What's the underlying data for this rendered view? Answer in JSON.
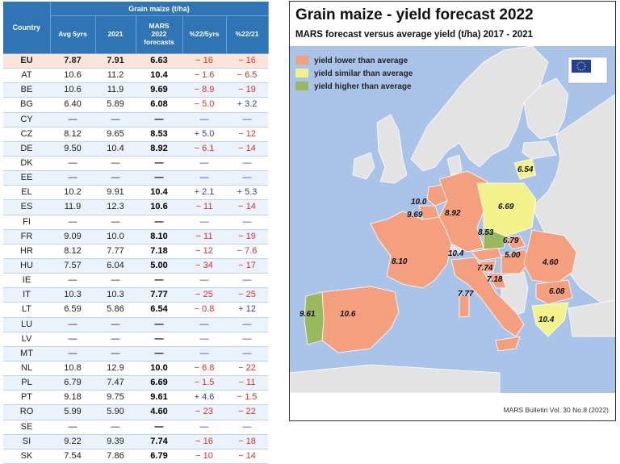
{
  "table": {
    "country_header": "Country",
    "group_header": "Grain maize (t/ha)",
    "columns": [
      "Avg 5yrs",
      "2021",
      "MARS\n2022\nforecasts",
      "%22/5yrs",
      "%22/21"
    ],
    "rows": [
      {
        "country": "EU",
        "avg": "7.87",
        "y2021": "7.91",
        "forecast": "6.63",
        "pct5": "− 16",
        "pct21": "− 16"
      },
      {
        "country": "AT",
        "avg": "10.6",
        "y2021": "11.2",
        "forecast": "10.4",
        "pct5": "− 1.6",
        "pct21": "− 6.5"
      },
      {
        "country": "BE",
        "avg": "10.6",
        "y2021": "11.9",
        "forecast": "9.69",
        "pct5": "− 8.9",
        "pct21": "− 19"
      },
      {
        "country": "BG",
        "avg": "6.40",
        "y2021": "5.89",
        "forecast": "6.08",
        "pct5": "− 5.0",
        "pct21": "+ 3.2"
      },
      {
        "country": "CY",
        "avg": "—",
        "y2021": "—",
        "forecast": "—",
        "pct5": "—",
        "pct21": "—"
      },
      {
        "country": "CZ",
        "avg": "8.12",
        "y2021": "9.65",
        "forecast": "8.53",
        "pct5": "+ 5.0",
        "pct21": "− 12"
      },
      {
        "country": "DE",
        "avg": "9.50",
        "y2021": "10.4",
        "forecast": "8.92",
        "pct5": "− 6.1",
        "pct21": "− 14"
      },
      {
        "country": "DK",
        "avg": "—",
        "y2021": "—",
        "forecast": "—",
        "pct5": "—",
        "pct21": "—"
      },
      {
        "country": "EE",
        "avg": "—",
        "y2021": "—",
        "forecast": "—",
        "pct5": "—",
        "pct21": "—"
      },
      {
        "country": "EL",
        "avg": "10.2",
        "y2021": "9.91",
        "forecast": "10.4",
        "pct5": "+ 2.1",
        "pct21": "+ 5.3"
      },
      {
        "country": "ES",
        "avg": "11.9",
        "y2021": "12.3",
        "forecast": "10.6",
        "pct5": "− 11",
        "pct21": "− 14"
      },
      {
        "country": "FI",
        "avg": "—",
        "y2021": "—",
        "forecast": "—",
        "pct5": "—",
        "pct21": "—"
      },
      {
        "country": "FR",
        "avg": "9.09",
        "y2021": "10.0",
        "forecast": "8.10",
        "pct5": "− 11",
        "pct21": "− 19"
      },
      {
        "country": "HR",
        "avg": "8.12",
        "y2021": "7.77",
        "forecast": "7.18",
        "pct5": "− 12",
        "pct21": "− 7.6"
      },
      {
        "country": "HU",
        "avg": "7.57",
        "y2021": "6.04",
        "forecast": "5.00",
        "pct5": "− 34",
        "pct21": "− 17"
      },
      {
        "country": "IE",
        "avg": "—",
        "y2021": "—",
        "forecast": "—",
        "pct5": "—",
        "pct21": "—"
      },
      {
        "country": "IT",
        "avg": "10.3",
        "y2021": "10.3",
        "forecast": "7.77",
        "pct5": "− 25",
        "pct21": "− 25"
      },
      {
        "country": "LT",
        "avg": "6.59",
        "y2021": "5.86",
        "forecast": "6.54",
        "pct5": "− 0.8",
        "pct21": "+ 12"
      },
      {
        "country": "LU",
        "avg": "—",
        "y2021": "—",
        "forecast": "—",
        "pct5": "—",
        "pct21": "—"
      },
      {
        "country": "LV",
        "avg": "—",
        "y2021": "—",
        "forecast": "—",
        "pct5": "—",
        "pct21": "—"
      },
      {
        "country": "MT",
        "avg": "—",
        "y2021": "—",
        "forecast": "—",
        "pct5": "—",
        "pct21": "—"
      },
      {
        "country": "NL",
        "avg": "10.8",
        "y2021": "12.9",
        "forecast": "10.0",
        "pct5": "− 6.8",
        "pct21": "− 22"
      },
      {
        "country": "PL",
        "avg": "6.79",
        "y2021": "7.47",
        "forecast": "6.69",
        "pct5": "− 1.5",
        "pct21": "− 11"
      },
      {
        "country": "PT",
        "avg": "9.18",
        "y2021": "9.75",
        "forecast": "9.61",
        "pct5": "+ 4.6",
        "pct21": "− 1.5"
      },
      {
        "country": "RO",
        "avg": "5.99",
        "y2021": "5.90",
        "forecast": "4.60",
        "pct5": "− 23",
        "pct21": "− 22"
      },
      {
        "country": "SE",
        "avg": "—",
        "y2021": "—",
        "forecast": "—",
        "pct5": "—",
        "pct21": "—"
      },
      {
        "country": "SI",
        "avg": "9.22",
        "y2021": "9.39",
        "forecast": "7.74",
        "pct5": "− 16",
        "pct21": "− 18"
      },
      {
        "country": "SK",
        "avg": "7.54",
        "y2021": "7.86",
        "forecast": "6.79",
        "pct5": "− 10",
        "pct21": "− 14"
      }
    ]
  },
  "map": {
    "title": "Grain maize - yield forecast 2022",
    "subtitle": "MARS forecast versus average yield (t/ha) 2017 - 2021",
    "source": "MARS Bulletin Vol. 30 No.8 (2022)",
    "legend": [
      {
        "label": "yield lower than average",
        "color": "#f4a07e"
      },
      {
        "label": "yield similar than average",
        "color": "#f4f28a"
      },
      {
        "label": "yield higher than average",
        "color": "#9ab95e"
      }
    ],
    "colors": {
      "sea": "#a9c4e8",
      "land_other": "#e3e3e3",
      "lower": "#f4a07e",
      "similar": "#f4f28a",
      "higher": "#9ab95e"
    },
    "values": {
      "LT": "6.54",
      "PL": "6.69",
      "NL": "10.0",
      "BE": "9.69",
      "DE": "8.92",
      "CZ": "8.53",
      "SK": "6.79",
      "AT": "10.4",
      "HU": "5.00",
      "SI": "7.74",
      "HR": "7.18",
      "RO": "4.60",
      "FR": "8.10",
      "IT": "7.77",
      "BG": "6.08",
      "PT": "9.61",
      "ES": "10.6",
      "EL": "10.4"
    }
  }
}
